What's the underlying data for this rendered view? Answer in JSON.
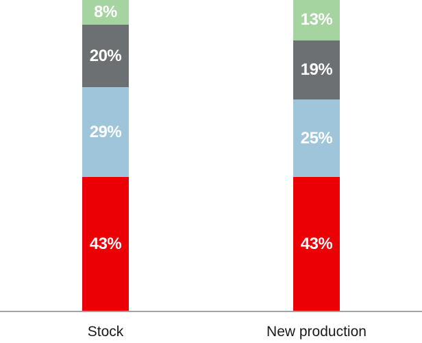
{
  "chart_data": {
    "type": "bar",
    "stacked": true,
    "orientation": "vertical",
    "title": "",
    "xlabel": "",
    "ylabel": "",
    "legend": "none",
    "grid": false,
    "top_cropped": true,
    "value_suffix": "%",
    "categories": [
      "Stock",
      "New production"
    ],
    "series": [
      {
        "name": "red-bottom-segment",
        "color": "#eb0005",
        "values": [
          43,
          43
        ]
      },
      {
        "name": "blue-segment",
        "color": "#9ec5da",
        "values": [
          29,
          25
        ]
      },
      {
        "name": "gray-segment",
        "color": "#6c7073",
        "values": [
          20,
          19
        ]
      },
      {
        "name": "green-top-segment",
        "color": "#a6d4a0",
        "values": [
          8,
          13
        ]
      }
    ],
    "data_labels": {
      "Stock": [
        "43%",
        "29%",
        "20%",
        "8%"
      ],
      "New production": [
        "43%",
        "25%",
        "19%",
        "13%"
      ]
    },
    "axis_line_color": "#a3a3a3",
    "label_text_color": "#ffffff",
    "category_text_color": "#1a1a1a"
  }
}
